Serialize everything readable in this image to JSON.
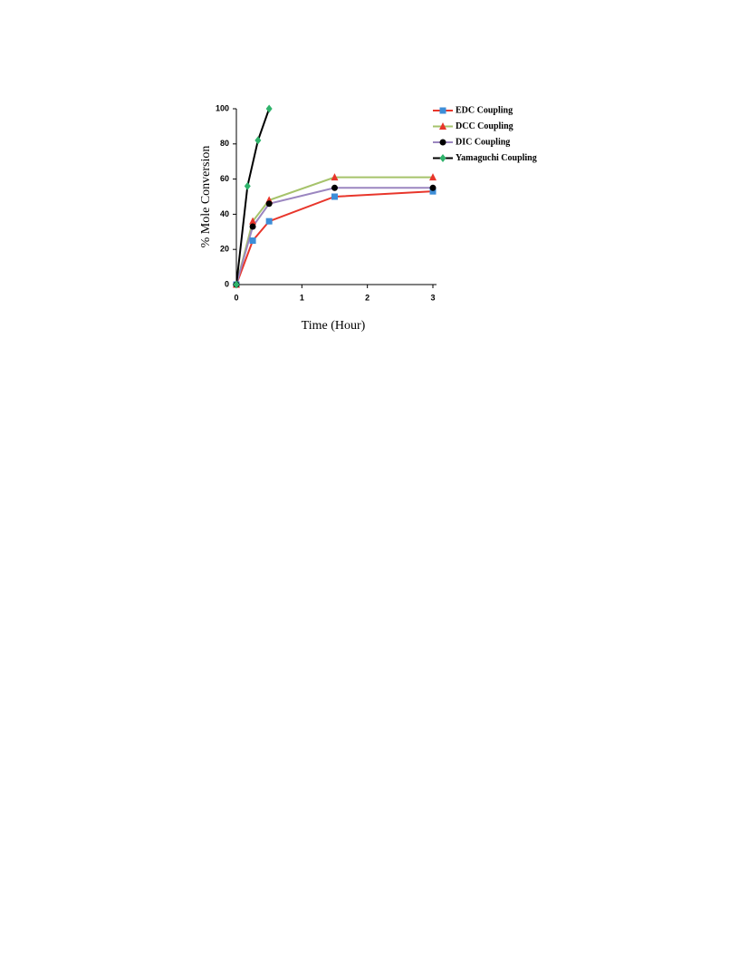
{
  "chart_data": {
    "type": "line",
    "x_label": "Time (Hour)",
    "y_label": "% Mole Conversion",
    "xlim": [
      0,
      3
    ],
    "xticks": [
      0,
      1,
      2,
      3
    ],
    "ylim": [
      0,
      100
    ],
    "yticks": [
      0,
      20,
      40,
      60,
      80,
      100
    ],
    "grid": false,
    "legend": "right",
    "series": [
      {
        "name": "EDC Coupling",
        "color": "#e8362b",
        "marker_color": "#3d8ed8",
        "marker": "square",
        "x": [
          0,
          0.25,
          0.5,
          1.5,
          3
        ],
        "values": [
          0,
          25,
          36,
          50,
          53
        ]
      },
      {
        "name": "DCC Coupling",
        "color": "#a6c36b",
        "marker_color": "#e8362b",
        "marker": "triangle",
        "x": [
          0,
          0.25,
          0.5,
          1.5,
          3
        ],
        "values": [
          0,
          36,
          48,
          61,
          61
        ]
      },
      {
        "name": "DIC Coupling",
        "color": "#9b86c0",
        "marker_color": "#000000",
        "marker": "circle",
        "x": [
          0,
          0.25,
          0.5,
          1.5,
          3
        ],
        "values": [
          0,
          33,
          46,
          55,
          55
        ]
      },
      {
        "name": "Yamaguchi Coupling",
        "color": "#000000",
        "marker_color": "#2fb36b",
        "marker": "diamond",
        "x": [
          0,
          0.17,
          0.33,
          0.5
        ],
        "values": [
          0,
          56,
          82,
          100
        ]
      }
    ]
  }
}
